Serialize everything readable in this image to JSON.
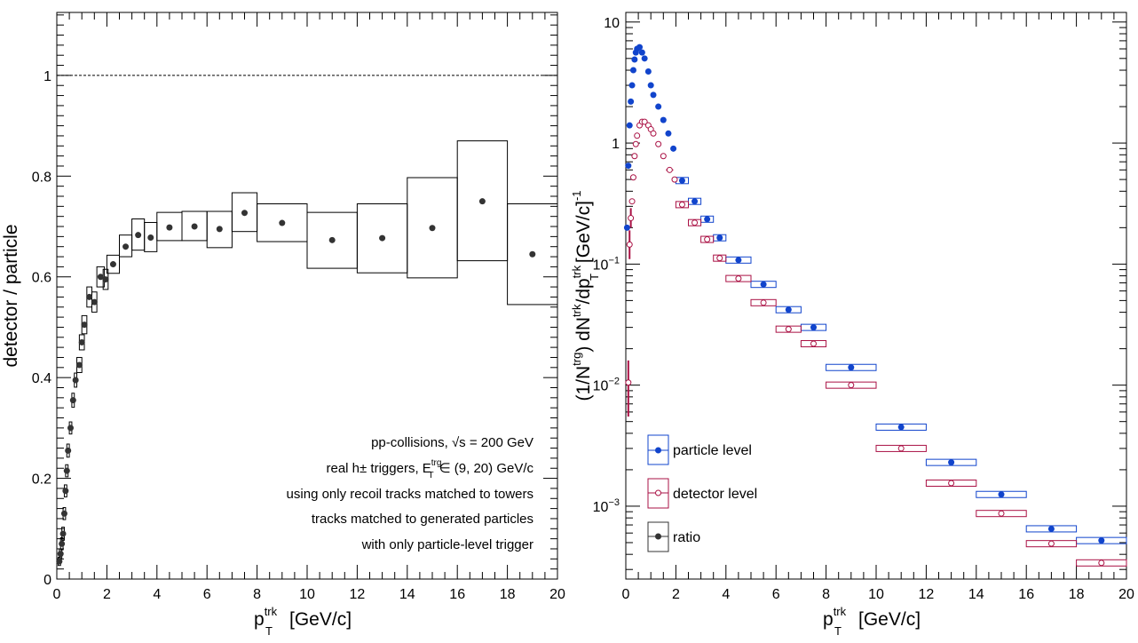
{
  "chart_data": [
    {
      "type": "scatter",
      "ylabel": "detector / particle",
      "xlabel": "p",
      "xlabel_sup": "trk",
      "xlabel_sub": "T",
      "xlabel_unit": "[GeV/c]",
      "xlim": [
        0,
        20
      ],
      "ylim": [
        0,
        1.125
      ],
      "xticks": [
        "0",
        "2",
        "4",
        "6",
        "8",
        "10",
        "12",
        "14",
        "16",
        "18",
        "20"
      ],
      "yticks": [
        "0",
        "0.2",
        "0.4",
        "0.6",
        "0.8",
        "1"
      ],
      "reference_line": 1,
      "series": [
        {
          "marker_color": "#333333",
          "points": [
            {
              "x": 0.1,
              "y": 0.035,
              "xlo": 0.05,
              "xhi": 0.15,
              "slo": 0.027,
              "shi": 0.043
            },
            {
              "x": 0.15,
              "y": 0.05,
              "xlo": 0.1,
              "xhi": 0.2,
              "slo": 0.04,
              "shi": 0.06
            },
            {
              "x": 0.2,
              "y": 0.07,
              "xlo": 0.15,
              "xhi": 0.25,
              "slo": 0.058,
              "shi": 0.082
            },
            {
              "x": 0.25,
              "y": 0.09,
              "xlo": 0.2,
              "xhi": 0.3,
              "slo": 0.077,
              "shi": 0.103
            },
            {
              "x": 0.3,
              "y": 0.13,
              "xlo": 0.25,
              "xhi": 0.35,
              "slo": 0.118,
              "shi": 0.142
            },
            {
              "x": 0.35,
              "y": 0.175,
              "xlo": 0.3,
              "xhi": 0.4,
              "slo": 0.163,
              "shi": 0.187
            },
            {
              "x": 0.4,
              "y": 0.215,
              "xlo": 0.35,
              "xhi": 0.45,
              "slo": 0.203,
              "shi": 0.227
            },
            {
              "x": 0.45,
              "y": 0.255,
              "xlo": 0.4,
              "xhi": 0.5,
              "slo": 0.242,
              "shi": 0.268
            },
            {
              "x": 0.55,
              "y": 0.3,
              "xlo": 0.5,
              "xhi": 0.6,
              "slo": 0.288,
              "shi": 0.312
            },
            {
              "x": 0.65,
              "y": 0.355,
              "xlo": 0.6,
              "xhi": 0.7,
              "slo": 0.341,
              "shi": 0.369
            },
            {
              "x": 0.75,
              "y": 0.395,
              "xlo": 0.7,
              "xhi": 0.8,
              "slo": 0.381,
              "shi": 0.409
            },
            {
              "x": 0.9,
              "y": 0.425,
              "xlo": 0.8,
              "xhi": 1.0,
              "slo": 0.41,
              "shi": 0.44
            },
            {
              "x": 1.0,
              "y": 0.47,
              "xlo": 0.9,
              "xhi": 1.1,
              "slo": 0.455,
              "shi": 0.485
            },
            {
              "x": 1.1,
              "y": 0.505,
              "xlo": 1.0,
              "xhi": 1.2,
              "slo": 0.487,
              "shi": 0.523
            },
            {
              "x": 1.3,
              "y": 0.56,
              "xlo": 1.2,
              "xhi": 1.4,
              "slo": 0.54,
              "shi": 0.58
            },
            {
              "x": 1.5,
              "y": 0.55,
              "xlo": 1.4,
              "xhi": 1.6,
              "slo": 0.53,
              "shi": 0.57
            },
            {
              "x": 1.75,
              "y": 0.6,
              "xlo": 1.6,
              "xhi": 1.9,
              "slo": 0.58,
              "shi": 0.62
            },
            {
              "x": 1.95,
              "y": 0.595,
              "xlo": 1.85,
              "xhi": 2.05,
              "slo": 0.575,
              "shi": 0.615
            },
            {
              "x": 2.25,
              "y": 0.625,
              "xlo": 2.0,
              "xhi": 2.5,
              "slo": 0.607,
              "shi": 0.643
            },
            {
              "x": 2.75,
              "y": 0.66,
              "xlo": 2.5,
              "xhi": 3.0,
              "slo": 0.64,
              "shi": 0.683
            },
            {
              "x": 3.25,
              "y": 0.683,
              "xlo": 3.0,
              "xhi": 3.5,
              "slo": 0.653,
              "shi": 0.715
            },
            {
              "x": 3.75,
              "y": 0.678,
              "xlo": 3.5,
              "xhi": 4.0,
              "slo": 0.65,
              "shi": 0.708
            },
            {
              "x": 4.5,
              "y": 0.698,
              "xlo": 4.0,
              "xhi": 5.0,
              "slo": 0.672,
              "shi": 0.728
            },
            {
              "x": 5.5,
              "y": 0.7,
              "xlo": 5.0,
              "xhi": 6.0,
              "slo": 0.672,
              "shi": 0.73
            },
            {
              "x": 6.5,
              "y": 0.695,
              "xlo": 6.0,
              "xhi": 7.0,
              "slo": 0.658,
              "shi": 0.73
            },
            {
              "x": 7.5,
              "y": 0.727,
              "xlo": 7.0,
              "xhi": 8.0,
              "slo": 0.69,
              "shi": 0.767
            },
            {
              "x": 9,
              "y": 0.707,
              "xlo": 8.0,
              "xhi": 10.0,
              "slo": 0.67,
              "shi": 0.745
            },
            {
              "x": 11,
              "y": 0.673,
              "xlo": 10.0,
              "xhi": 12.0,
              "slo": 0.617,
              "shi": 0.728
            },
            {
              "x": 13,
              "y": 0.677,
              "xlo": 12.0,
              "xhi": 14.0,
              "slo": 0.608,
              "shi": 0.745
            },
            {
              "x": 15,
              "y": 0.697,
              "xlo": 14.0,
              "xhi": 16.0,
              "slo": 0.598,
              "shi": 0.797
            },
            {
              "x": 17,
              "y": 0.75,
              "xlo": 16.0,
              "xhi": 18.0,
              "slo": 0.632,
              "shi": 0.87
            },
            {
              "x": 19,
              "y": 0.645,
              "xlo": 18.0,
              "xhi": 20.0,
              "slo": 0.545,
              "shi": 0.745
            }
          ]
        }
      ],
      "annotations": [
        "pp-collisions, √s = 200 GeV",
        "real h± triggers, E",
        "trg",
        "T",
        "∈ (9, 20) GeV/c",
        "using only recoil tracks matched to towers",
        "tracks matched to generated particles",
        "with only particle-level trigger"
      ]
    },
    {
      "type": "scatter",
      "ylabel_parts": [
        "(1/N",
        "trg",
        ") dN",
        "trk",
        "/dp",
        "trk",
        "T",
        " [GeV/c]",
        "-1"
      ],
      "xlabel": "p",
      "xlabel_sup": "trk",
      "xlabel_sub": "T",
      "xlabel_unit": "[GeV/c]",
      "xlim": [
        0,
        20
      ],
      "ylim": [
        0.00025,
        12
      ],
      "yscale": "log",
      "xticks": [
        "0",
        "2",
        "4",
        "6",
        "8",
        "10",
        "12",
        "14",
        "16",
        "18",
        "20"
      ],
      "yticks": [
        {
          "v": 10,
          "base": "10",
          "exp": ""
        },
        {
          "v": 1,
          "base": "1",
          "exp": ""
        },
        {
          "v": 0.1,
          "base": "10",
          "exp": "−1"
        },
        {
          "v": 0.01,
          "base": "10",
          "exp": "−2"
        },
        {
          "v": 0.001,
          "base": "10",
          "exp": "−3"
        }
      ],
      "legend": {
        "position": "bottom-left",
        "entries": [
          "particle level",
          "detector level",
          "ratio"
        ]
      },
      "series": [
        {
          "name": "particle level",
          "color": "#1144cc",
          "filled": true,
          "points": [
            {
              "x": 0.05,
              "y": 0.2,
              "xlo": 0.0,
              "xhi": 0.1
            },
            {
              "x": 0.1,
              "y": 0.65,
              "xlo": 0.05,
              "xhi": 0.15
            },
            {
              "x": 0.15,
              "y": 1.4,
              "xlo": 0.1,
              "xhi": 0.2
            },
            {
              "x": 0.2,
              "y": 2.2,
              "xlo": 0.15,
              "xhi": 0.25
            },
            {
              "x": 0.25,
              "y": 3.0,
              "xlo": 0.2,
              "xhi": 0.3
            },
            {
              "x": 0.3,
              "y": 4.0,
              "xlo": 0.25,
              "xhi": 0.35
            },
            {
              "x": 0.35,
              "y": 4.9,
              "xlo": 0.3,
              "xhi": 0.4
            },
            {
              "x": 0.4,
              "y": 5.6,
              "xlo": 0.35,
              "xhi": 0.45
            },
            {
              "x": 0.45,
              "y": 6.0,
              "xlo": 0.4,
              "xhi": 0.5
            },
            {
              "x": 0.55,
              "y": 6.2,
              "xlo": 0.5,
              "xhi": 0.6
            },
            {
              "x": 0.65,
              "y": 5.6,
              "xlo": 0.6,
              "xhi": 0.7
            },
            {
              "x": 0.75,
              "y": 5.0,
              "xlo": 0.7,
              "xhi": 0.8
            },
            {
              "x": 0.9,
              "y": 3.9,
              "xlo": 0.8,
              "xhi": 1.0
            },
            {
              "x": 1.0,
              "y": 3.0,
              "xlo": 0.9,
              "xhi": 1.1
            },
            {
              "x": 1.1,
              "y": 2.5,
              "xlo": 1.0,
              "xhi": 1.2
            },
            {
              "x": 1.3,
              "y": 2.0,
              "xlo": 1.2,
              "xhi": 1.4
            },
            {
              "x": 1.5,
              "y": 1.55,
              "xlo": 1.4,
              "xhi": 1.6
            },
            {
              "x": 1.7,
              "y": 1.2,
              "xlo": 1.6,
              "xhi": 1.8
            },
            {
              "x": 1.9,
              "y": 0.9,
              "xlo": 1.8,
              "xhi": 2.0
            },
            {
              "x": 2.25,
              "y": 0.49,
              "xlo": 2.0,
              "xhi": 2.5
            },
            {
              "x": 2.75,
              "y": 0.33,
              "xlo": 2.5,
              "xhi": 3.0
            },
            {
              "x": 3.25,
              "y": 0.235,
              "xlo": 3.0,
              "xhi": 3.5
            },
            {
              "x": 3.75,
              "y": 0.165,
              "xlo": 3.5,
              "xhi": 4.0
            },
            {
              "x": 4.5,
              "y": 0.108,
              "xlo": 4.0,
              "xhi": 5.0
            },
            {
              "x": 5.5,
              "y": 0.068,
              "xlo": 5.0,
              "xhi": 6.0
            },
            {
              "x": 6.5,
              "y": 0.042,
              "xlo": 6.0,
              "xhi": 7.0
            },
            {
              "x": 7.5,
              "y": 0.03,
              "xlo": 7.0,
              "xhi": 8.0
            },
            {
              "x": 9,
              "y": 0.014,
              "xlo": 8.0,
              "xhi": 10.0
            },
            {
              "x": 11,
              "y": 0.0045,
              "xlo": 10.0,
              "xhi": 12.0
            },
            {
              "x": 13,
              "y": 0.0023,
              "xlo": 12.0,
              "xhi": 14.0
            },
            {
              "x": 15,
              "y": 0.00125,
              "xlo": 14.0,
              "xhi": 16.0
            },
            {
              "x": 17,
              "y": 0.00065,
              "xlo": 16.0,
              "xhi": 18.0
            },
            {
              "x": 19,
              "y": 0.00052,
              "xlo": 18.0,
              "xhi": 20.0
            }
          ]
        },
        {
          "name": "detector level",
          "color": "#aa1144",
          "filled": false,
          "points": [
            {
              "x": 0.1,
              "y": 0.0105,
              "xlo": 0.05,
              "xhi": 0.15,
              "elo": 0.0055,
              "ehi": 0.016
            },
            {
              "x": 0.15,
              "y": 0.145,
              "xlo": 0.1,
              "xhi": 0.2,
              "elo": 0.11,
              "ehi": 0.19
            },
            {
              "x": 0.2,
              "y": 0.24,
              "xlo": 0.15,
              "xhi": 0.25,
              "elo": 0.2,
              "ehi": 0.29
            },
            {
              "x": 0.25,
              "y": 0.33,
              "xlo": 0.2,
              "xhi": 0.3
            },
            {
              "x": 0.3,
              "y": 0.52,
              "xlo": 0.25,
              "xhi": 0.35
            },
            {
              "x": 0.35,
              "y": 0.78,
              "xlo": 0.3,
              "xhi": 0.4
            },
            {
              "x": 0.4,
              "y": 0.98,
              "xlo": 0.35,
              "xhi": 0.45
            },
            {
              "x": 0.45,
              "y": 1.15,
              "xlo": 0.4,
              "xhi": 0.5
            },
            {
              "x": 0.55,
              "y": 1.4,
              "xlo": 0.5,
              "xhi": 0.6
            },
            {
              "x": 0.65,
              "y": 1.5,
              "xlo": 0.6,
              "xhi": 0.7
            },
            {
              "x": 0.75,
              "y": 1.5,
              "xlo": 0.7,
              "xhi": 0.8
            },
            {
              "x": 0.9,
              "y": 1.4,
              "xlo": 0.8,
              "xhi": 1.0
            },
            {
              "x": 1.0,
              "y": 1.3,
              "xlo": 0.9,
              "xhi": 1.1
            },
            {
              "x": 1.1,
              "y": 1.2,
              "xlo": 1.0,
              "xhi": 1.2
            },
            {
              "x": 1.3,
              "y": 0.98,
              "xlo": 1.2,
              "xhi": 1.4
            },
            {
              "x": 1.5,
              "y": 0.78,
              "xlo": 1.4,
              "xhi": 1.6
            },
            {
              "x": 1.75,
              "y": 0.6,
              "xlo": 1.6,
              "xhi": 1.9
            },
            {
              "x": 1.95,
              "y": 0.5,
              "xlo": 1.85,
              "xhi": 2.05
            },
            {
              "x": 2.25,
              "y": 0.31,
              "xlo": 2.0,
              "xhi": 2.5
            },
            {
              "x": 2.75,
              "y": 0.22,
              "xlo": 2.5,
              "xhi": 3.0
            },
            {
              "x": 3.25,
              "y": 0.16,
              "xlo": 3.0,
              "xhi": 3.5
            },
            {
              "x": 3.75,
              "y": 0.112,
              "xlo": 3.5,
              "xhi": 4.0
            },
            {
              "x": 4.5,
              "y": 0.076,
              "xlo": 4.0,
              "xhi": 5.0
            },
            {
              "x": 5.5,
              "y": 0.048,
              "xlo": 5.0,
              "xhi": 6.0
            },
            {
              "x": 6.5,
              "y": 0.029,
              "xlo": 6.0,
              "xhi": 7.0
            },
            {
              "x": 7.5,
              "y": 0.022,
              "xlo": 7.0,
              "xhi": 8.0
            },
            {
              "x": 9,
              "y": 0.01,
              "xlo": 8.0,
              "xhi": 10.0
            },
            {
              "x": 11,
              "y": 0.003,
              "xlo": 10.0,
              "xhi": 12.0
            },
            {
              "x": 13,
              "y": 0.00155,
              "xlo": 12.0,
              "xhi": 14.0
            },
            {
              "x": 15,
              "y": 0.00087,
              "xlo": 14.0,
              "xhi": 16.0
            },
            {
              "x": 17,
              "y": 0.00049,
              "xlo": 16.0,
              "xhi": 18.0
            },
            {
              "x": 19,
              "y": 0.00034,
              "xlo": 18.0,
              "xhi": 20.0
            }
          ]
        }
      ]
    }
  ]
}
